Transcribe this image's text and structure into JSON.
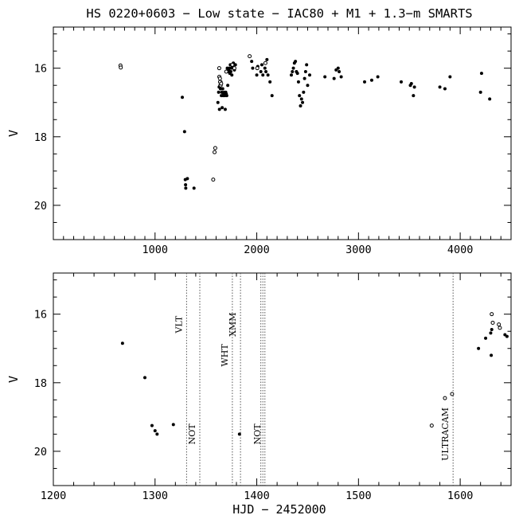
{
  "chart_data": [
    {
      "type": "scatter",
      "title": "HS 0220+0603 − Low state − IAC80 + M1 + 1.3−m SMARTS",
      "xlabel": "",
      "ylabel": "V",
      "xlim": [
        0,
        4500
      ],
      "ylim": [
        21,
        14.8
      ],
      "y_inverted": true,
      "xticks": [
        1000,
        2000,
        3000,
        4000
      ],
      "yticks": [
        16,
        18,
        20
      ],
      "series": [
        {
          "marker": "filled",
          "points": [
            [
              1268,
              16.85
            ],
            [
              1290,
              17.85
            ],
            [
              1297,
              19.25
            ],
            [
              1300,
              19.4
            ],
            [
              1302,
              19.5
            ],
            [
              1318,
              19.22
            ],
            [
              1383,
              19.5
            ],
            [
              1618,
              17.0
            ],
            [
              1625,
              16.7
            ],
            [
              1630,
              16.55
            ],
            [
              1633,
              17.2
            ],
            [
              1638,
              16.5
            ],
            [
              1643,
              16.6
            ],
            [
              1648,
              16.4
            ],
            [
              1652,
              16.8
            ],
            [
              1656,
              16.7
            ],
            [
              1660,
              17.15
            ],
            [
              1665,
              16.6
            ],
            [
              1670,
              16.8
            ],
            [
              1675,
              16.75
            ],
            [
              1680,
              16.7
            ],
            [
              1685,
              16.8
            ],
            [
              1690,
              17.2
            ],
            [
              1695,
              16.7
            ],
            [
              1700,
              16.75
            ],
            [
              1705,
              16.8
            ],
            [
              1710,
              16.0
            ],
            [
              1715,
              16.5
            ],
            [
              1720,
              16.1
            ],
            [
              1725,
              16.05
            ],
            [
              1730,
              16.0
            ],
            [
              1735,
              16.15
            ],
            [
              1740,
              15.9
            ],
            [
              1745,
              16.1
            ],
            [
              1750,
              16.0
            ],
            [
              1755,
              16.2
            ],
            [
              1760,
              15.95
            ],
            [
              1770,
              15.85
            ],
            [
              1780,
              16.05
            ],
            [
              1790,
              15.9
            ],
            [
              1950,
              15.8
            ],
            [
              1960,
              16.0
            ],
            [
              2000,
              16.2
            ],
            [
              2010,
              15.95
            ],
            [
              2040,
              16.1
            ],
            [
              2050,
              15.9
            ],
            [
              2060,
              16.2
            ],
            [
              2080,
              16.0
            ],
            [
              2090,
              16.1
            ],
            [
              2100,
              15.75
            ],
            [
              2110,
              16.2
            ],
            [
              2130,
              16.4
            ],
            [
              2150,
              16.8
            ],
            [
              2340,
              16.2
            ],
            [
              2350,
              16.1
            ],
            [
              2360,
              16.0
            ],
            [
              2370,
              15.85
            ],
            [
              2380,
              15.8
            ],
            [
              2390,
              16.1
            ],
            [
              2400,
              16.15
            ],
            [
              2410,
              16.4
            ],
            [
              2420,
              16.8
            ],
            [
              2430,
              17.1
            ],
            [
              2440,
              16.9
            ],
            [
              2450,
              17.0
            ],
            [
              2460,
              16.7
            ],
            [
              2470,
              16.3
            ],
            [
              2480,
              16.1
            ],
            [
              2490,
              15.9
            ],
            [
              2500,
              16.5
            ],
            [
              2520,
              16.2
            ],
            [
              2670,
              16.25
            ],
            [
              2760,
              16.3
            ],
            [
              2780,
              16.05
            ],
            [
              2800,
              16.0
            ],
            [
              2810,
              16.1
            ],
            [
              2830,
              16.25
            ],
            [
              3060,
              16.4
            ],
            [
              3130,
              16.35
            ],
            [
              3190,
              16.25
            ],
            [
              3420,
              16.4
            ],
            [
              3510,
              16.5
            ],
            [
              3520,
              16.45
            ],
            [
              3540,
              16.8
            ],
            [
              3550,
              16.55
            ],
            [
              3800,
              16.55
            ],
            [
              3850,
              16.6
            ],
            [
              3900,
              16.25
            ],
            [
              4200,
              16.7
            ],
            [
              4210,
              16.15
            ],
            [
              4290,
              16.9
            ]
          ]
        },
        {
          "marker": "open",
          "points": [
            [
              660,
              15.92
            ],
            [
              663,
              15.98
            ],
            [
              1572,
              19.25
            ],
            [
              1585,
              18.45
            ],
            [
              1592,
              18.33
            ],
            [
              1631,
              16.0
            ],
            [
              1632,
              16.25
            ],
            [
              1638,
              16.3
            ],
            [
              1639,
              16.4
            ],
            [
              1645,
              16.5
            ],
            [
              1650,
              16.45
            ],
            [
              1700,
              16.1
            ],
            [
              1760,
              15.9
            ],
            [
              1780,
              16.0
            ],
            [
              1930,
              15.65
            ],
            [
              2005,
              16.0
            ],
            [
              2085,
              15.85
            ]
          ]
        }
      ]
    },
    {
      "type": "scatter",
      "title": "",
      "xlabel": "HJD − 2452000",
      "ylabel": "V",
      "xlim": [
        1200,
        1650
      ],
      "ylim": [
        21,
        14.8
      ],
      "y_inverted": true,
      "xticks": [
        1200,
        1300,
        1400,
        1500,
        1600
      ],
      "yticks": [
        16,
        18,
        20
      ],
      "series": [
        {
          "marker": "filled",
          "points": [
            [
              1268,
              16.85
            ],
            [
              1290,
              17.85
            ],
            [
              1297,
              19.25
            ],
            [
              1300,
              19.4
            ],
            [
              1302,
              19.5
            ],
            [
              1318,
              19.22
            ],
            [
              1383,
              19.5
            ],
            [
              1618,
              17.0
            ],
            [
              1625,
              16.7
            ],
            [
              1630,
              16.55
            ],
            [
              1631,
              16.45
            ],
            [
              1630.5,
              17.2
            ],
            [
              1644,
              16.6
            ],
            [
              1646,
              16.65
            ]
          ]
        },
        {
          "marker": "open",
          "points": [
            [
              1572,
              19.25
            ],
            [
              1585,
              18.45
            ],
            [
              1592,
              18.33
            ],
            [
              1631,
              16.0
            ],
            [
              1632,
              16.25
            ],
            [
              1638,
              16.3
            ],
            [
              1639,
              16.4
            ]
          ]
        }
      ],
      "event_lines": [
        {
          "x": 1331,
          "label": "VLT",
          "label_pos": "upper"
        },
        {
          "x": 1344,
          "label": "NOT",
          "label_pos": "lower"
        },
        {
          "x": 1376,
          "label": "WHT",
          "label_pos": "middle"
        },
        {
          "x": 1384,
          "label": "XMM",
          "label_pos": "upper"
        },
        {
          "x": 1404,
          "label": "",
          "label_pos": "none"
        },
        {
          "x": 1406,
          "label": "",
          "label_pos": "none"
        },
        {
          "x": 1408,
          "label": "NOT",
          "label_pos": "lower"
        },
        {
          "x": 1593,
          "label": "ULTRACAM",
          "label_pos": "lower"
        }
      ]
    }
  ]
}
